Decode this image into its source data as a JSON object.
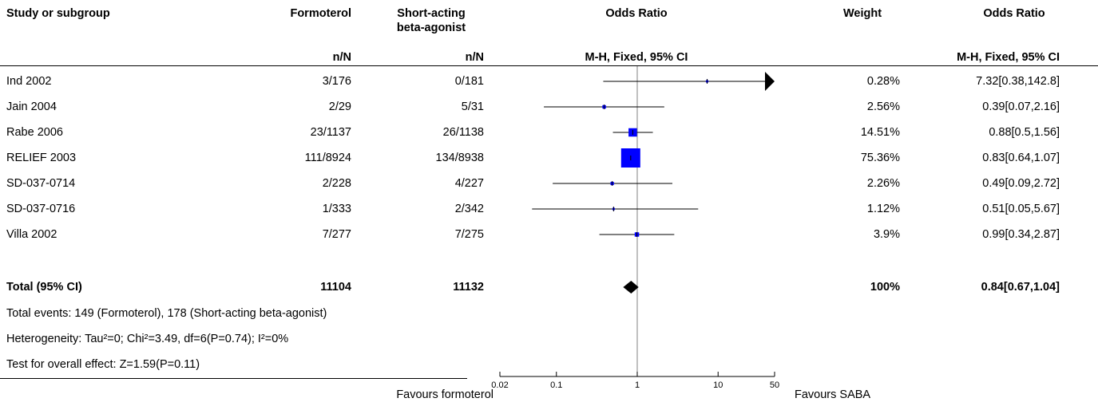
{
  "header": {
    "study": "Study or subgroup",
    "group1": "Formoterol",
    "group2_line1": "Short-acting",
    "group2_line2": "beta-agonist",
    "plot": "Odds Ratio",
    "weight": "Weight",
    "effect": "Odds Ratio",
    "sub_group1": "n/N",
    "sub_group2": "n/N",
    "sub_plot": "M-H, Fixed, 95% CI",
    "sub_effect": "M-H, Fixed, 95% CI"
  },
  "chart_data": {
    "type": "forest",
    "method": "M-H, Fixed, 95% CI",
    "scale": "log",
    "null_line": 1,
    "xlim": [
      0.02,
      50
    ],
    "ticks": [
      0.02,
      0.1,
      1,
      10,
      50
    ],
    "tick_labels": [
      "0.02",
      "0.1",
      "1",
      "10",
      "50"
    ],
    "favours_left": "Favours formoterol",
    "favours_right": "Favours SABA",
    "studies": [
      {
        "name": "Ind 2002",
        "g1": "3/176",
        "g2": "0/181",
        "or": 7.32,
        "lo": 0.38,
        "hi": 142.8,
        "weight_pct": 0.28,
        "weight": "0.28%",
        "ci_text": "7.32[0.38,142.8]"
      },
      {
        "name": "Jain 2004",
        "g1": "2/29",
        "g2": "5/31",
        "or": 0.39,
        "lo": 0.07,
        "hi": 2.16,
        "weight_pct": 2.56,
        "weight": "2.56%",
        "ci_text": "0.39[0.07,2.16]"
      },
      {
        "name": "Rabe 2006",
        "g1": "23/1137",
        "g2": "26/1138",
        "or": 0.88,
        "lo": 0.5,
        "hi": 1.56,
        "weight_pct": 14.51,
        "weight": "14.51%",
        "ci_text": "0.88[0.5,1.56]"
      },
      {
        "name": "RELIEF 2003",
        "g1": "111/8924",
        "g2": "134/8938",
        "or": 0.83,
        "lo": 0.64,
        "hi": 1.07,
        "weight_pct": 75.36,
        "weight": "75.36%",
        "ci_text": "0.83[0.64,1.07]"
      },
      {
        "name": "SD-037-0714",
        "g1": "2/228",
        "g2": "4/227",
        "or": 0.49,
        "lo": 0.09,
        "hi": 2.72,
        "weight_pct": 2.26,
        "weight": "2.26%",
        "ci_text": "0.49[0.09,2.72]"
      },
      {
        "name": "SD-037-0716",
        "g1": "1/333",
        "g2": "2/342",
        "or": 0.51,
        "lo": 0.05,
        "hi": 5.67,
        "weight_pct": 1.12,
        "weight": "1.12%",
        "ci_text": "0.51[0.05,5.67]"
      },
      {
        "name": "Villa 2002",
        "g1": "7/277",
        "g2": "7/275",
        "or": 0.99,
        "lo": 0.34,
        "hi": 2.87,
        "weight_pct": 3.9,
        "weight": "3.9%",
        "ci_text": "0.99[0.34,2.87]"
      }
    ],
    "total": {
      "name": "Total (95% CI)",
      "g1": "11104",
      "g2": "11132",
      "or": 0.84,
      "lo": 0.67,
      "hi": 1.04,
      "weight": "100%",
      "ci_text": "0.84[0.67,1.04]"
    },
    "footnotes": [
      "Total events: 149 (Formoterol), 178 (Short-acting beta-agonist)",
      "Heterogeneity: Tau²=0; Chi²=3.49, df=6(P=0.74); I²=0%",
      "Test for overall effect: Z=1.59(P=0.11)"
    ],
    "colors": {
      "box": "#0000ff",
      "line": "#000000"
    }
  }
}
